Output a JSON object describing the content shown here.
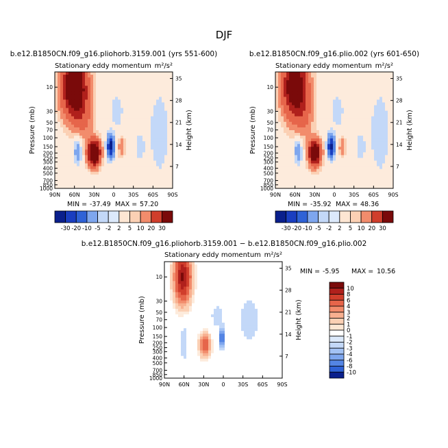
{
  "figure_title": "DJF",
  "colors": {
    "pos": [
      "#fde6d3",
      "#fbd0b4",
      "#f8b090",
      "#f28c6c",
      "#e6654a",
      "#d03e2c",
      "#b0201c",
      "#7a0a0a"
    ],
    "neg": [
      "#dce9fb",
      "#c3d8f8",
      "#a3c2f4",
      "#7ea6ee",
      "#5485e4",
      "#2f62d6",
      "#1a3ec0",
      "#0a1f8c"
    ],
    "zero": "#ffffff",
    "background": "#fdebdc"
  },
  "chart_data": [
    {
      "type": "heatmap",
      "id": "panel1",
      "run_title": "b.e12.B1850CN.f09_g16.pliohorb.3159.001 (yrs 551-600)",
      "left_subtitle": "Stationary eddy momentum",
      "right_subtitle": "m²/s²",
      "stats": {
        "min_label": "MIN =",
        "min": "-37.49",
        "max_label": "MAX =",
        "max": "57.20"
      },
      "xlabel": "",
      "ylabel": "Pressure (mb)",
      "y2label": "Height (km)",
      "x_ticks": [
        "90N",
        "60N",
        "30N",
        "0",
        "30S",
        "60S",
        "90S"
      ],
      "y_ticks": [
        "10",
        "30",
        "50",
        "70",
        "100",
        "150",
        "200",
        "250",
        "300",
        "400",
        "500",
        "700",
        "850",
        "1000"
      ],
      "y2_ticks": [
        "35",
        "28",
        "21",
        "14",
        "7"
      ],
      "levels": [
        -30,
        -20,
        -10,
        -5,
        -2,
        2,
        5,
        10,
        20,
        30
      ],
      "level_labels": [
        "-30",
        "-20",
        "-10",
        "-5",
        "-2",
        "2",
        "5",
        "10",
        "20",
        "30"
      ],
      "features": [
        {
          "lat": 60,
          "p": 10,
          "value": 52,
          "lat_w": 18,
          "p_w": 1.3
        },
        {
          "lat": 30,
          "p": 200,
          "value": 57,
          "lat_w": 9,
          "p_w": 0.55
        },
        {
          "lat": 45,
          "p": 40,
          "value": 9,
          "lat_w": 14,
          "p_w": 1.0
        },
        {
          "lat": 5,
          "p": 150,
          "value": -37,
          "lat_w": 5,
          "p_w": 0.45
        },
        {
          "lat": 55,
          "p": 180,
          "value": -9,
          "lat_w": 6,
          "p_w": 0.6
        },
        {
          "lat": -12,
          "p": 150,
          "value": 10,
          "lat_w": 5,
          "p_w": 0.45
        },
        {
          "lat": -40,
          "p": 150,
          "value": -5,
          "lat_w": 6,
          "p_w": 0.5
        },
        {
          "lat": -70,
          "p": 80,
          "value": -3,
          "lat_w": 20,
          "p_w": 2.5
        },
        {
          "lat": -5,
          "p": 30,
          "value": -3,
          "lat_w": 12,
          "p_w": 1.0
        }
      ]
    },
    {
      "type": "heatmap",
      "id": "panel2",
      "run_title": "b.e12.B1850CN.f09_g16.plio.002 (yrs 601-650)",
      "left_subtitle": "Stationary eddy momentum",
      "right_subtitle": "m²/s²",
      "stats": {
        "min_label": "MIN =",
        "min": "-35.92",
        "max_label": "MAX =",
        "max": "48.36"
      },
      "xlabel": "",
      "ylabel": "Pressure (mb)",
      "y2label": "Height (km)",
      "x_ticks": [
        "90N",
        "60N",
        "30N",
        "0",
        "30S",
        "60S",
        "90S"
      ],
      "y_ticks": [
        "10",
        "30",
        "50",
        "70",
        "100",
        "150",
        "200",
        "250",
        "300",
        "400",
        "500",
        "700",
        "850",
        "1000"
      ],
      "y2_ticks": [
        "35",
        "28",
        "21",
        "14",
        "7"
      ],
      "levels": [
        -30,
        -20,
        -10,
        -5,
        -2,
        2,
        5,
        10,
        20,
        30
      ],
      "level_labels": [
        "-30",
        "-20",
        "-10",
        "-5",
        "-2",
        "2",
        "5",
        "10",
        "20",
        "30"
      ],
      "features": [
        {
          "lat": 60,
          "p": 10,
          "value": 46,
          "lat_w": 18,
          "p_w": 1.3
        },
        {
          "lat": 30,
          "p": 200,
          "value": 48,
          "lat_w": 9,
          "p_w": 0.55
        },
        {
          "lat": 45,
          "p": 40,
          "value": 8,
          "lat_w": 14,
          "p_w": 1.0
        },
        {
          "lat": 5,
          "p": 150,
          "value": -36,
          "lat_w": 5,
          "p_w": 0.45
        },
        {
          "lat": 55,
          "p": 180,
          "value": -9,
          "lat_w": 6,
          "p_w": 0.6
        },
        {
          "lat": -12,
          "p": 150,
          "value": 9,
          "lat_w": 5,
          "p_w": 0.45
        },
        {
          "lat": -40,
          "p": 150,
          "value": -5,
          "lat_w": 6,
          "p_w": 0.5
        },
        {
          "lat": -70,
          "p": 80,
          "value": -3,
          "lat_w": 20,
          "p_w": 2.5
        },
        {
          "lat": -5,
          "p": 30,
          "value": -3,
          "lat_w": 12,
          "p_w": 1.0
        }
      ]
    },
    {
      "type": "heatmap",
      "id": "panel3",
      "run_title": "b.e12.B1850CN.f09_g16.pliohorb.3159.001 − b.e12.B1850CN.f09_g16.plio.002",
      "left_subtitle": "Stationary eddy momentum",
      "right_subtitle": "m²/s²",
      "stats": {
        "min_label": "MIN =",
        "min": "-5.95",
        "max_label": "MAX =",
        "max": "10.56"
      },
      "xlabel": "",
      "ylabel": "Pressure (mb)",
      "y2label": "Height (km)",
      "x_ticks": [
        "90N",
        "60N",
        "30N",
        "0",
        "30S",
        "60S",
        "90S"
      ],
      "y_ticks": [
        "10",
        "30",
        "50",
        "70",
        "100",
        "150",
        "200",
        "250",
        "300",
        "400",
        "500",
        "700",
        "850",
        "1000"
      ],
      "y2_ticks": [
        "35",
        "28",
        "21",
        "14",
        "7"
      ],
      "levels": [
        -10,
        -8,
        -6,
        -4,
        -3,
        -2,
        -1,
        0,
        1,
        2,
        3,
        4,
        6,
        8,
        10
      ],
      "level_labels": [
        "-10",
        "-8",
        "-6",
        "-4",
        "-3",
        "-2",
        "-1",
        "0",
        "1",
        "2",
        "3",
        "4",
        "6",
        "8",
        "10"
      ],
      "features": [
        {
          "lat": 62,
          "p": 10,
          "value": 10.5,
          "lat_w": 12,
          "p_w": 1.1
        },
        {
          "lat": 28,
          "p": 220,
          "value": 6,
          "lat_w": 8,
          "p_w": 0.5
        },
        {
          "lat": 2,
          "p": 170,
          "value": -6,
          "lat_w": 4,
          "p_w": 0.4
        },
        {
          "lat": 60,
          "p": 200,
          "value": -2,
          "lat_w": 6,
          "p_w": 0.9
        },
        {
          "lat": -40,
          "p": 70,
          "value": -1.2,
          "lat_w": 30,
          "p_w": 2.0
        },
        {
          "lat": 10,
          "p": 60,
          "value": -1.2,
          "lat_w": 15,
          "p_w": 0.8
        }
      ]
    }
  ]
}
